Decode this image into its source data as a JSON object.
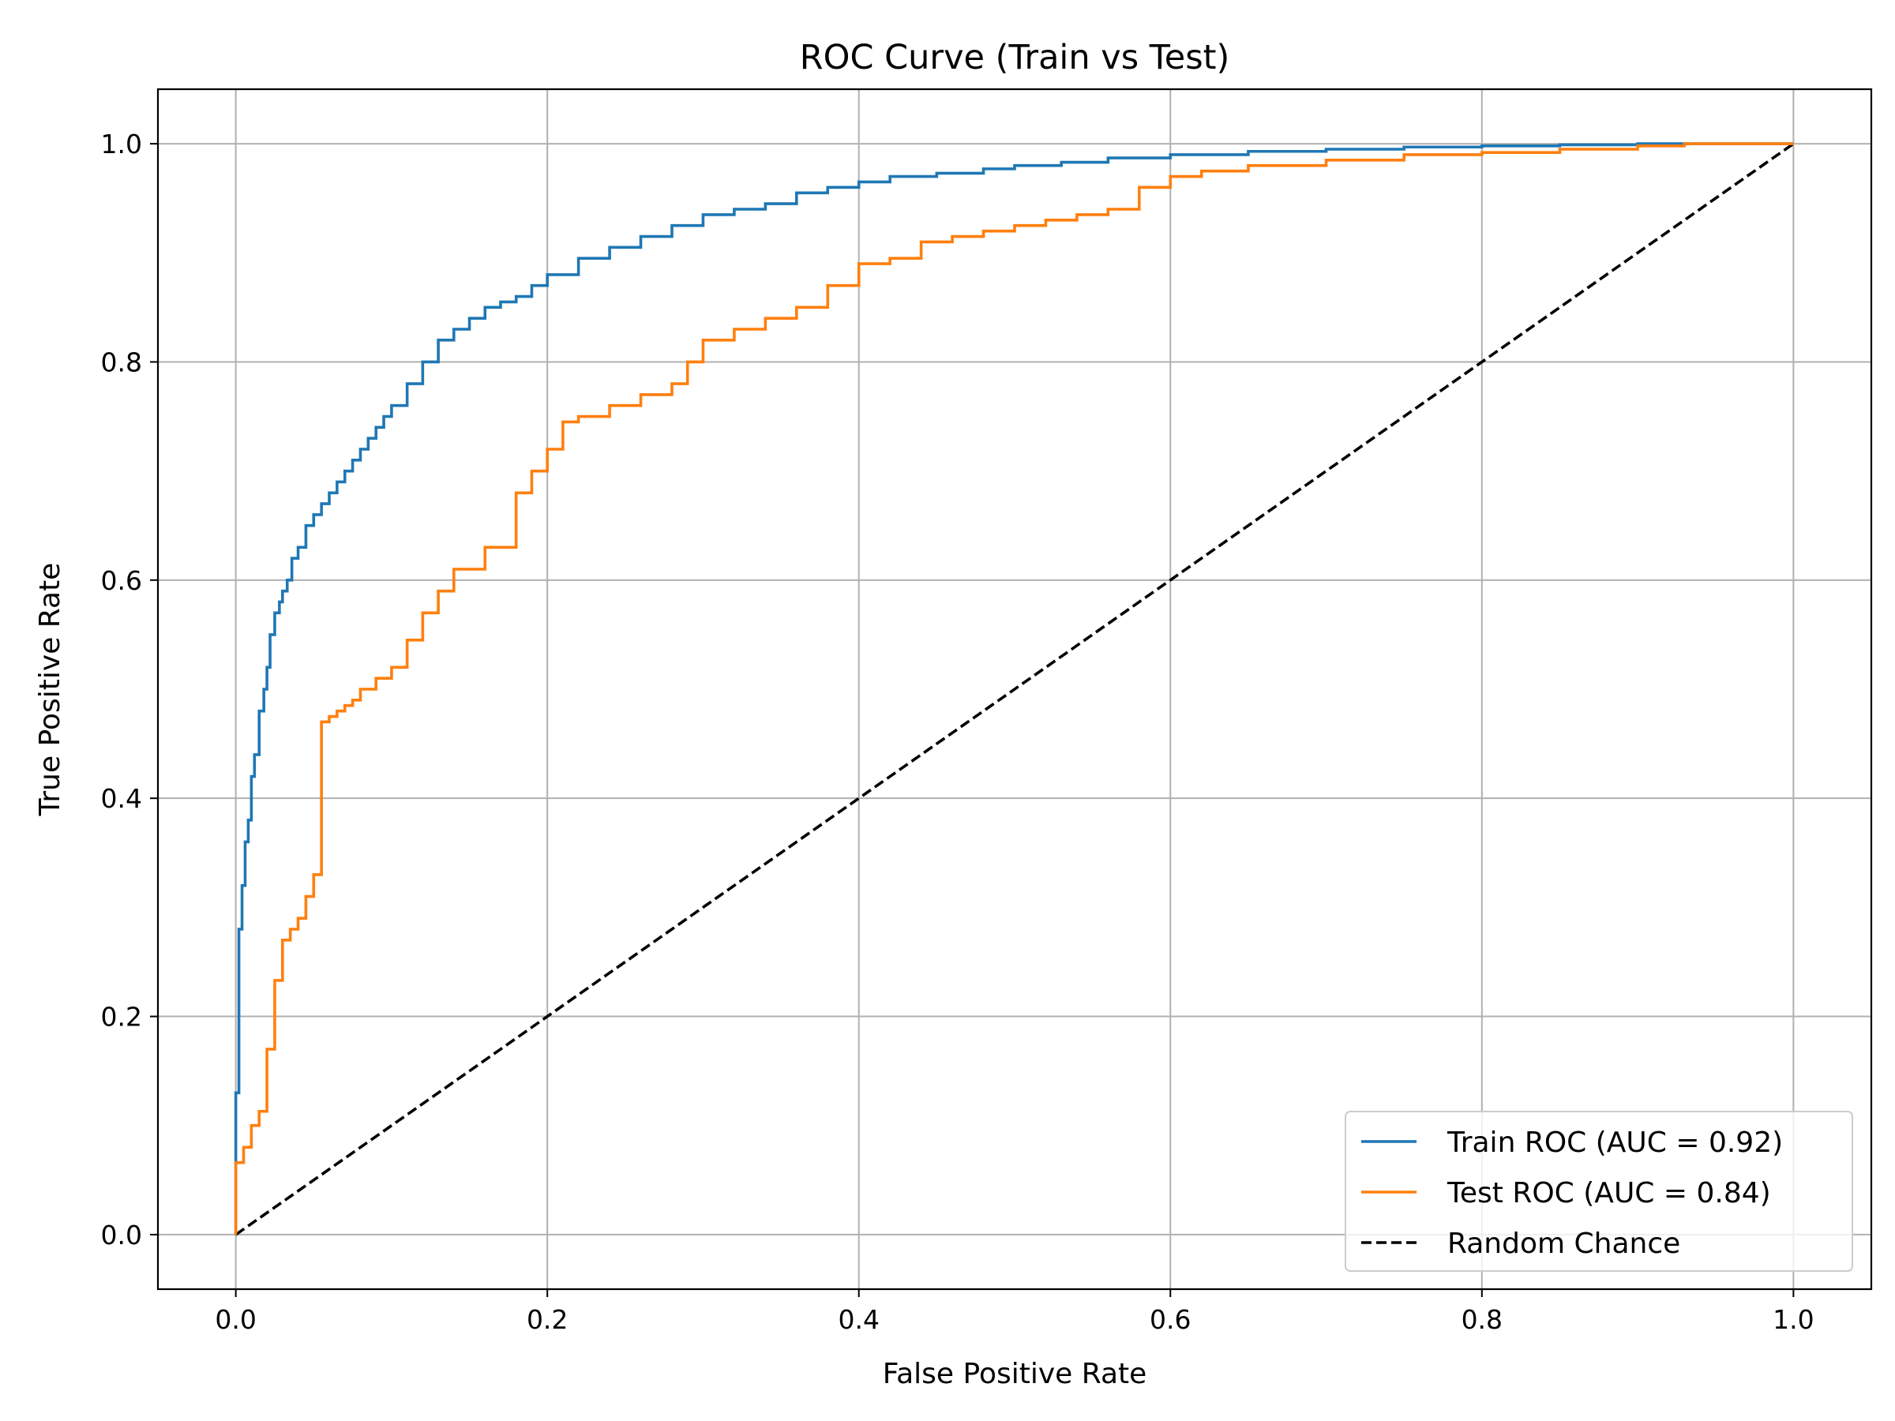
{
  "chart_data": {
    "type": "line",
    "title": "ROC Curve (Train vs Test)",
    "xlabel": "False Positive Rate",
    "ylabel": "True Positive Rate",
    "xlim": [
      -0.05,
      1.05
    ],
    "ylim": [
      -0.05,
      1.05
    ],
    "xticks": [
      0.0,
      0.2,
      0.4,
      0.6,
      0.8,
      1.0
    ],
    "xtick_labels": [
      "0.0",
      "0.2",
      "0.4",
      "0.6",
      "0.8",
      "1.0"
    ],
    "yticks": [
      0.0,
      0.2,
      0.4,
      0.6,
      0.8,
      1.0
    ],
    "ytick_labels": [
      "0.0",
      "0.2",
      "0.4",
      "0.6",
      "0.8",
      "1.0"
    ],
    "grid": true,
    "legend_position": "lower-right",
    "series": [
      {
        "name": "Train ROC (AUC = 0.92)",
        "color": "#1f77b4",
        "style": "solid",
        "x": [
          0.0,
          0.0,
          0.002,
          0.004,
          0.006,
          0.008,
          0.01,
          0.012,
          0.015,
          0.018,
          0.02,
          0.022,
          0.025,
          0.028,
          0.03,
          0.033,
          0.036,
          0.04,
          0.045,
          0.05,
          0.055,
          0.06,
          0.065,
          0.07,
          0.075,
          0.08,
          0.085,
          0.09,
          0.095,
          0.1,
          0.11,
          0.12,
          0.13,
          0.14,
          0.15,
          0.16,
          0.17,
          0.18,
          0.19,
          0.2,
          0.22,
          0.24,
          0.26,
          0.28,
          0.3,
          0.32,
          0.34,
          0.36,
          0.38,
          0.4,
          0.42,
          0.45,
          0.48,
          0.5,
          0.53,
          0.56,
          0.6,
          0.65,
          0.7,
          0.75,
          0.8,
          0.85,
          0.9,
          0.93,
          1.0
        ],
        "y": [
          0.0,
          0.13,
          0.28,
          0.32,
          0.36,
          0.38,
          0.42,
          0.44,
          0.48,
          0.5,
          0.52,
          0.55,
          0.57,
          0.58,
          0.59,
          0.6,
          0.62,
          0.63,
          0.65,
          0.66,
          0.67,
          0.68,
          0.69,
          0.7,
          0.71,
          0.72,
          0.73,
          0.74,
          0.75,
          0.76,
          0.78,
          0.8,
          0.82,
          0.83,
          0.84,
          0.85,
          0.855,
          0.86,
          0.87,
          0.88,
          0.895,
          0.905,
          0.915,
          0.925,
          0.935,
          0.94,
          0.945,
          0.955,
          0.96,
          0.965,
          0.97,
          0.973,
          0.977,
          0.98,
          0.983,
          0.987,
          0.99,
          0.993,
          0.995,
          0.997,
          0.998,
          0.999,
          1.0,
          1.0,
          1.0
        ]
      },
      {
        "name": "Test ROC (AUC = 0.84)",
        "color": "#ff7f0e",
        "style": "solid",
        "x": [
          0.0,
          0.0,
          0.005,
          0.01,
          0.015,
          0.02,
          0.025,
          0.03,
          0.035,
          0.04,
          0.045,
          0.05,
          0.055,
          0.06,
          0.065,
          0.07,
          0.075,
          0.08,
          0.09,
          0.1,
          0.11,
          0.12,
          0.13,
          0.14,
          0.15,
          0.16,
          0.17,
          0.18,
          0.19,
          0.2,
          0.21,
          0.22,
          0.24,
          0.26,
          0.28,
          0.29,
          0.3,
          0.32,
          0.34,
          0.36,
          0.38,
          0.4,
          0.42,
          0.44,
          0.46,
          0.48,
          0.5,
          0.52,
          0.54,
          0.56,
          0.58,
          0.6,
          0.62,
          0.65,
          0.7,
          0.75,
          0.8,
          0.85,
          0.9,
          0.93,
          1.0
        ],
        "y": [
          0.0,
          0.066,
          0.08,
          0.1,
          0.113,
          0.17,
          0.233,
          0.27,
          0.28,
          0.29,
          0.31,
          0.33,
          0.47,
          0.475,
          0.48,
          0.485,
          0.49,
          0.5,
          0.51,
          0.52,
          0.545,
          0.57,
          0.59,
          0.61,
          0.61,
          0.63,
          0.63,
          0.68,
          0.7,
          0.72,
          0.745,
          0.75,
          0.76,
          0.77,
          0.78,
          0.8,
          0.82,
          0.83,
          0.84,
          0.85,
          0.87,
          0.89,
          0.895,
          0.91,
          0.915,
          0.92,
          0.925,
          0.93,
          0.935,
          0.94,
          0.96,
          0.97,
          0.975,
          0.98,
          0.985,
          0.99,
          0.992,
          0.995,
          0.998,
          1.0,
          1.0
        ]
      },
      {
        "name": "Random Chance",
        "color": "#000000",
        "style": "dashed",
        "x": [
          0.0,
          1.0
        ],
        "y": [
          0.0,
          1.0
        ]
      }
    ]
  }
}
